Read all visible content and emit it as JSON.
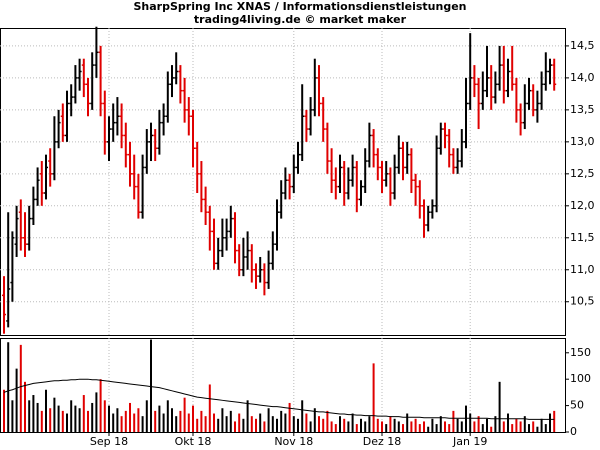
{
  "chart_data": {
    "type": "ohlc",
    "title": "SharpSpring Inc XNAS / Informationsdienstleistungen",
    "subtitle": "trading4living.de © market maker",
    "up_color": "#000000",
    "down_color": "#e00000",
    "ma_color": "#000000",
    "grid": true,
    "categories": [
      null,
      null,
      null,
      null,
      null,
      null,
      null,
      null,
      null,
      null,
      null,
      null,
      null,
      null,
      null,
      null,
      null,
      null,
      null,
      null,
      null,
      null,
      null,
      null,
      null,
      "Sep 18",
      null,
      null,
      null,
      null,
      null,
      null,
      null,
      null,
      null,
      null,
      null,
      null,
      null,
      null,
      null,
      null,
      null,
      null,
      null,
      "Okt 18",
      null,
      null,
      null,
      null,
      null,
      null,
      null,
      null,
      null,
      null,
      null,
      null,
      null,
      null,
      null,
      null,
      null,
      null,
      null,
      null,
      null,
      null,
      null,
      "Nov 18",
      null,
      null,
      null,
      null,
      null,
      null,
      null,
      null,
      null,
      null,
      null,
      null,
      null,
      null,
      null,
      null,
      null,
      null,
      null,
      null,
      "Dez 18",
      null,
      null,
      null,
      null,
      null,
      null,
      null,
      null,
      null,
      null,
      null,
      null,
      null,
      null,
      null,
      null,
      null,
      null,
      null,
      null,
      "Jan 19",
      null,
      null,
      null,
      null,
      null,
      null,
      null,
      null,
      null,
      null,
      null,
      null,
      null,
      null,
      null,
      null,
      null,
      null,
      null,
      null
    ],
    "ohlc": [
      [
        10.6,
        10.9,
        10.0,
        10.3
      ],
      [
        10.2,
        11.9,
        10.1,
        10.7
      ],
      [
        10.8,
        11.6,
        10.5,
        11.5
      ],
      [
        11.4,
        12.0,
        11.2,
        11.8
      ],
      [
        11.9,
        12.1,
        11.3,
        11.5
      ],
      [
        11.5,
        11.9,
        11.2,
        11.4
      ],
      [
        11.4,
        12.0,
        11.3,
        11.8
      ],
      [
        11.8,
        12.3,
        11.7,
        12.1
      ],
      [
        12.1,
        12.6,
        12.0,
        12.4
      ],
      [
        12.5,
        12.7,
        12.0,
        12.2
      ],
      [
        12.2,
        12.8,
        12.1,
        12.6
      ],
      [
        12.7,
        12.9,
        12.3,
        12.5
      ],
      [
        12.5,
        13.4,
        12.4,
        13.0
      ],
      [
        13.0,
        13.5,
        12.9,
        13.3
      ],
      [
        13.4,
        13.6,
        13.0,
        13.1
      ],
      [
        13.1,
        13.8,
        13.0,
        13.6
      ],
      [
        13.6,
        13.9,
        13.4,
        13.7
      ],
      [
        13.7,
        14.2,
        13.6,
        14.0
      ],
      [
        14.0,
        14.3,
        13.8,
        14.1
      ],
      [
        14.2,
        14.3,
        13.7,
        13.9
      ],
      [
        13.9,
        14.0,
        13.4,
        13.6
      ],
      [
        13.6,
        14.4,
        13.5,
        14.2
      ],
      [
        14.2,
        14.8,
        14.0,
        14.4
      ],
      [
        14.4,
        14.5,
        13.4,
        13.6
      ],
      [
        13.6,
        13.8,
        12.8,
        13.0
      ],
      [
        13.0,
        13.4,
        12.7,
        13.2
      ],
      [
        13.2,
        13.6,
        13.0,
        13.3
      ],
      [
        13.3,
        13.7,
        13.1,
        13.4
      ],
      [
        13.4,
        13.6,
        12.9,
        13.1
      ],
      [
        13.1,
        13.3,
        12.6,
        12.8
      ],
      [
        12.8,
        13.0,
        12.3,
        12.5
      ],
      [
        12.5,
        12.8,
        12.1,
        12.3
      ],
      [
        12.3,
        12.5,
        11.8,
        11.9
      ],
      [
        11.9,
        12.8,
        11.8,
        12.6
      ],
      [
        12.6,
        13.2,
        12.5,
        13.0
      ],
      [
        13.0,
        13.3,
        12.7,
        13.1
      ],
      [
        13.1,
        13.2,
        12.7,
        12.9
      ],
      [
        12.9,
        13.5,
        12.8,
        13.3
      ],
      [
        13.3,
        13.6,
        13.1,
        13.4
      ],
      [
        13.4,
        14.1,
        13.3,
        13.9
      ],
      [
        13.9,
        14.2,
        13.7,
        14.0
      ],
      [
        14.0,
        14.4,
        13.9,
        14.1
      ],
      [
        14.1,
        14.2,
        13.6,
        13.8
      ],
      [
        13.8,
        14.0,
        13.3,
        13.5
      ],
      [
        13.5,
        13.7,
        13.1,
        13.4
      ],
      [
        13.4,
        13.5,
        12.6,
        12.9
      ],
      [
        12.9,
        13.0,
        12.2,
        12.5
      ],
      [
        12.5,
        12.7,
        11.9,
        12.1
      ],
      [
        12.1,
        12.3,
        11.7,
        11.9
      ],
      [
        11.9,
        12.0,
        11.3,
        11.6
      ],
      [
        11.6,
        11.8,
        11.0,
        11.1
      ],
      [
        11.1,
        11.5,
        11.0,
        11.3
      ],
      [
        11.3,
        11.8,
        11.2,
        11.5
      ],
      [
        11.5,
        11.8,
        11.3,
        11.6
      ],
      [
        11.6,
        12.0,
        11.5,
        11.8
      ],
      [
        11.8,
        11.9,
        11.1,
        11.3
      ],
      [
        11.3,
        11.4,
        10.9,
        11.0
      ],
      [
        11.0,
        11.5,
        10.9,
        11.2
      ],
      [
        11.2,
        11.6,
        11.0,
        11.3
      ],
      [
        11.3,
        11.4,
        10.8,
        11.0
      ],
      [
        11.0,
        11.1,
        10.7,
        10.9
      ],
      [
        10.9,
        11.2,
        10.8,
        11.0
      ],
      [
        11.0,
        11.1,
        10.6,
        10.8
      ],
      [
        10.8,
        11.3,
        10.7,
        11.1
      ],
      [
        11.1,
        11.6,
        11.0,
        11.4
      ],
      [
        11.4,
        12.1,
        11.3,
        11.9
      ],
      [
        11.9,
        12.4,
        11.8,
        12.2
      ],
      [
        12.2,
        12.6,
        12.1,
        12.4
      ],
      [
        12.4,
        12.5,
        12.1,
        12.3
      ],
      [
        12.3,
        12.8,
        12.2,
        12.6
      ],
      [
        12.6,
        13.0,
        12.5,
        12.8
      ],
      [
        12.8,
        13.9,
        12.7,
        13.4
      ],
      [
        13.4,
        13.5,
        13.0,
        13.2
      ],
      [
        13.2,
        13.7,
        13.1,
        13.5
      ],
      [
        13.5,
        14.3,
        13.4,
        14.0
      ],
      [
        14.0,
        14.2,
        13.4,
        13.6
      ],
      [
        13.6,
        13.7,
        13.0,
        13.2
      ],
      [
        13.2,
        13.3,
        12.5,
        12.7
      ],
      [
        12.7,
        12.9,
        12.2,
        12.4
      ],
      [
        12.4,
        12.6,
        12.1,
        12.3
      ],
      [
        12.3,
        12.8,
        12.2,
        12.6
      ],
      [
        12.6,
        12.7,
        12.0,
        12.2
      ],
      [
        12.2,
        12.6,
        12.1,
        12.4
      ],
      [
        12.4,
        12.8,
        12.3,
        12.6
      ],
      [
        12.6,
        12.7,
        11.9,
        12.1
      ],
      [
        12.1,
        12.4,
        12.0,
        12.3
      ],
      [
        12.3,
        12.9,
        12.2,
        12.7
      ],
      [
        12.7,
        13.3,
        12.6,
        13.1
      ],
      [
        13.1,
        13.2,
        12.6,
        12.8
      ],
      [
        12.8,
        12.9,
        12.4,
        12.6
      ],
      [
        12.6,
        12.7,
        12.2,
        12.4
      ],
      [
        12.4,
        12.7,
        12.3,
        12.5
      ],
      [
        12.5,
        12.6,
        12.0,
        12.2
      ],
      [
        12.2,
        12.8,
        12.1,
        12.6
      ],
      [
        12.6,
        13.1,
        12.5,
        12.9
      ],
      [
        12.9,
        13.0,
        12.4,
        12.6
      ],
      [
        12.6,
        13.0,
        12.5,
        12.8
      ],
      [
        12.8,
        12.9,
        12.2,
        12.4
      ],
      [
        12.4,
        12.5,
        12.0,
        12.3
      ],
      [
        12.3,
        12.4,
        11.8,
        12.0
      ],
      [
        12.0,
        12.1,
        11.5,
        11.7
      ],
      [
        11.7,
        12.0,
        11.6,
        11.9
      ],
      [
        11.9,
        12.1,
        11.8,
        12.0
      ],
      [
        12.0,
        13.1,
        11.9,
        12.9
      ],
      [
        12.9,
        13.3,
        12.8,
        13.2
      ],
      [
        13.2,
        13.3,
        12.9,
        13.1
      ],
      [
        13.1,
        13.2,
        12.6,
        12.8
      ],
      [
        12.8,
        12.9,
        12.5,
        12.6
      ],
      [
        12.6,
        12.9,
        12.5,
        12.7
      ],
      [
        12.7,
        13.2,
        12.6,
        13.0
      ],
      [
        13.0,
        14.0,
        12.9,
        13.6
      ],
      [
        13.6,
        14.7,
        13.5,
        14.0
      ],
      [
        14.0,
        14.2,
        13.7,
        13.9
      ],
      [
        13.9,
        14.0,
        13.2,
        13.6
      ],
      [
        13.6,
        14.1,
        13.5,
        13.8
      ],
      [
        13.8,
        14.5,
        13.7,
        14.0
      ],
      [
        14.0,
        14.2,
        13.5,
        13.7
      ],
      [
        13.7,
        14.1,
        13.6,
        13.9
      ],
      [
        13.9,
        14.5,
        13.8,
        14.2
      ],
      [
        14.2,
        14.5,
        13.6,
        13.8
      ],
      [
        13.8,
        14.3,
        13.7,
        14.1
      ],
      [
        14.1,
        14.5,
        13.8,
        13.9
      ],
      [
        13.9,
        14.0,
        13.3,
        13.5
      ],
      [
        13.5,
        13.6,
        13.1,
        13.3
      ],
      [
        13.3,
        13.9,
        13.2,
        13.6
      ],
      [
        13.6,
        14.0,
        13.5,
        13.8
      ],
      [
        13.8,
        13.9,
        13.4,
        13.5
      ],
      [
        13.5,
        13.8,
        13.3,
        13.6
      ],
      [
        13.6,
        14.1,
        13.5,
        13.9
      ],
      [
        13.9,
        14.4,
        13.8,
        14.1
      ],
      [
        14.1,
        14.3,
        13.9,
        14.2
      ],
      [
        14.2,
        14.3,
        13.8,
        13.9
      ]
    ],
    "ylim": [
      9.98,
      14.78
    ],
    "yticks": [
      {
        "value": 10.5,
        "label": "10,5"
      },
      {
        "value": 11,
        "label": "11,0"
      },
      {
        "value": 11.5,
        "label": "11,5"
      },
      {
        "value": 12,
        "label": "12,0"
      },
      {
        "value": 12.5,
        "label": "12,5"
      },
      {
        "value": 13,
        "label": "13,0"
      },
      {
        "value": 13.5,
        "label": "13,5"
      },
      {
        "value": 14,
        "label": "14,0"
      },
      {
        "value": 14.5,
        "label": "14,5"
      }
    ],
    "volume": [
      80,
      170,
      60,
      120,
      165,
      95,
      60,
      70,
      55,
      40,
      80,
      45,
      65,
      50,
      40,
      35,
      60,
      50,
      45,
      70,
      40,
      55,
      75,
      100,
      60,
      50,
      35,
      45,
      30,
      40,
      55,
      35,
      45,
      30,
      60,
      175,
      40,
      50,
      35,
      60,
      45,
      30,
      40,
      65,
      35,
      50,
      25,
      40,
      30,
      90,
      35,
      25,
      45,
      30,
      40,
      20,
      35,
      25,
      60,
      30,
      25,
      35,
      20,
      45,
      30,
      25,
      40,
      35,
      55,
      30,
      25,
      60,
      35,
      20,
      45,
      30,
      25,
      40,
      20,
      15,
      30,
      25,
      20,
      35,
      15,
      25,
      20,
      30,
      130,
      25,
      20,
      15,
      30,
      25,
      20,
      15,
      35,
      20,
      25,
      15,
      20,
      10,
      25,
      15,
      30,
      20,
      15,
      40,
      25,
      20,
      50,
      35,
      20,
      30,
      15,
      25,
      10,
      30,
      95,
      20,
      35,
      15,
      25,
      20,
      30,
      15,
      20,
      10,
      25,
      15,
      35,
      40
    ],
    "volume_ma": [
      75,
      78,
      80,
      83,
      86,
      88,
      90,
      92,
      93,
      94,
      95,
      96,
      97,
      97,
      98,
      98,
      99,
      99,
      100,
      100,
      100,
      99,
      99,
      98,
      97,
      96,
      95,
      94,
      93,
      92,
      91,
      90,
      89,
      88,
      87,
      86,
      85,
      84,
      82,
      80,
      78,
      76,
      74,
      72,
      70,
      68,
      66,
      65,
      64,
      63,
      62,
      61,
      60,
      59,
      58,
      57,
      56,
      55,
      54,
      53,
      52,
      51,
      50,
      49,
      48,
      48,
      47,
      46,
      45,
      44,
      43,
      42,
      41,
      40,
      39,
      38,
      38,
      37,
      36,
      35,
      34,
      34,
      33,
      33,
      32,
      32,
      31,
      31,
      31,
      30,
      30,
      30,
      29,
      29,
      29,
      28,
      28,
      28,
      28,
      28,
      27,
      27,
      27,
      27,
      27,
      27,
      26,
      26,
      26,
      26,
      26,
      26,
      26,
      26,
      26,
      26,
      25,
      25,
      25,
      25,
      25,
      25,
      25,
      25,
      25,
      24,
      24,
      24,
      24,
      24,
      24,
      24
    ],
    "volume_ylim": [
      0,
      178
    ],
    "volume_yticks": [
      0,
      50,
      100,
      150
    ]
  }
}
